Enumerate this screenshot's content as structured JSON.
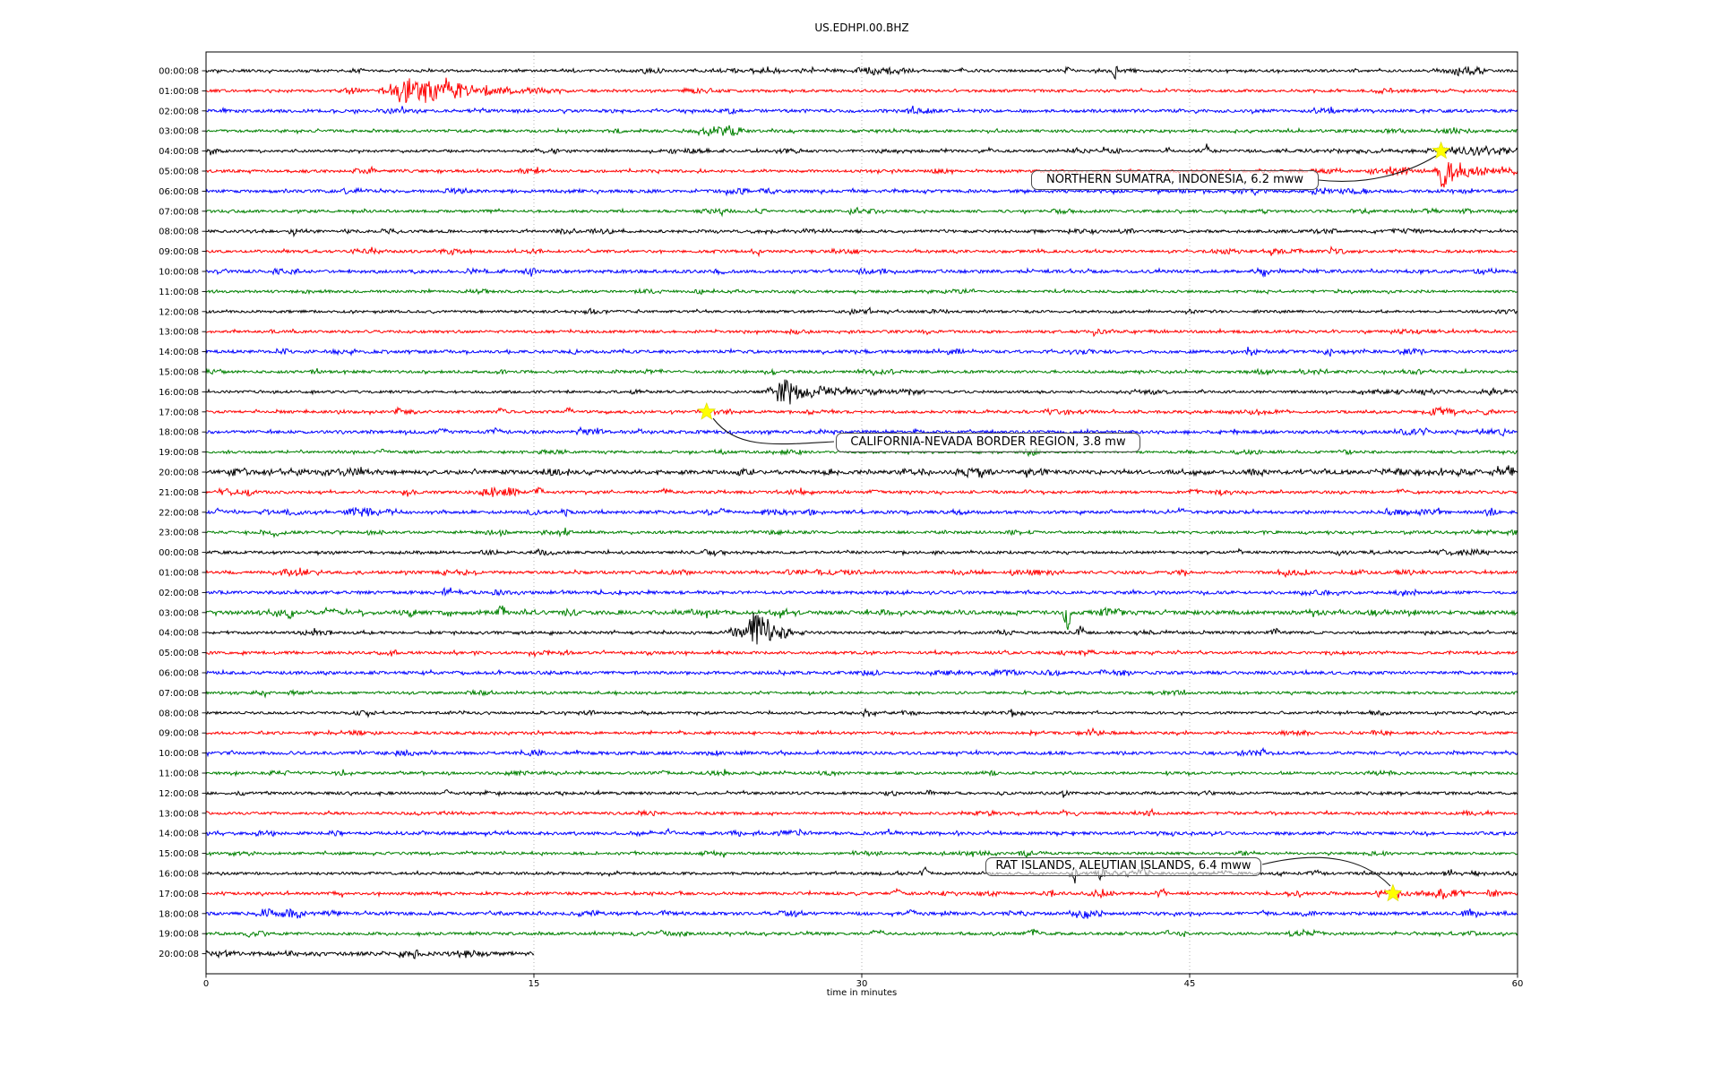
{
  "title": "US.EDHPI.00.BHZ",
  "chart_data": {
    "type": "line",
    "subtype": "helicorder-dayplot",
    "title": "US.EDHPI.00.BHZ",
    "xlabel": "time in minutes",
    "xlim": [
      0,
      60
    ],
    "xticks": [
      0,
      15,
      30,
      45,
      60
    ],
    "grid_minutes": [
      15,
      30,
      45
    ],
    "grid_style": "dotted",
    "trace_color_cycle": [
      "#000000",
      "#ff0000",
      "#0000ff",
      "#008000"
    ],
    "star_color": "#ffff00",
    "rows": [
      {
        "label": "00:00:08",
        "color": "#000000",
        "noise": 1.4,
        "bursts": [
          [
            25.5,
            0.5,
            3
          ],
          [
            30.8,
            1.2,
            4
          ],
          [
            34.6,
            0.1,
            3
          ],
          [
            39.4,
            0.12,
            6
          ],
          [
            41.6,
            0.07,
            -20
          ],
          [
            57.3,
            0.7,
            4
          ]
        ]
      },
      {
        "label": "01:00:08",
        "color": "#ff0000",
        "noise": 1.5,
        "bursts": [
          [
            6.6,
            0.3,
            4
          ],
          [
            9.0,
            0.5,
            12
          ],
          [
            10.2,
            0.8,
            14
          ],
          [
            11.5,
            0.6,
            8
          ],
          [
            12.9,
            0.8,
            5
          ],
          [
            14.5,
            1.0,
            3
          ]
        ]
      },
      {
        "label": "02:00:08",
        "color": "#0000ff",
        "noise": 1.7,
        "bursts": []
      },
      {
        "label": "03:00:08",
        "color": "#008000",
        "noise": 1.5,
        "bursts": [
          [
            23.3,
            0.5,
            6
          ],
          [
            24.1,
            0.3,
            5
          ]
        ]
      },
      {
        "label": "04:00:08",
        "color": "#000000",
        "noise": 1.4,
        "bursts": [
          [
            35.9,
            0.1,
            4
          ],
          [
            44.0,
            0.1,
            5
          ],
          [
            45.8,
            0.08,
            8
          ],
          [
            52,
            4,
            1.6
          ],
          [
            56.4,
            0.15,
            6
          ],
          [
            57.6,
            1.2,
            4
          ],
          [
            59.2,
            0.8,
            3
          ]
        ]
      },
      {
        "label": "05:00:08",
        "color": "#ff0000",
        "noise": 1.5,
        "bursts": [
          [
            54.6,
            0.8,
            4
          ],
          [
            56.6,
            0.1,
            -24
          ],
          [
            56.8,
            0.35,
            11
          ],
          [
            57.9,
            1.0,
            6
          ],
          [
            59.2,
            0.8,
            4
          ]
        ]
      },
      {
        "label": "06:00:08",
        "color": "#0000ff",
        "noise": 1.7,
        "bursts": []
      },
      {
        "label": "07:00:08",
        "color": "#008000",
        "noise": 1.5,
        "bursts": [
          [
            13.2,
            0.2,
            3
          ]
        ]
      },
      {
        "label": "08:00:08",
        "color": "#000000",
        "noise": 1.5,
        "bursts": [
          [
            27,
            3,
            1.2
          ]
        ]
      },
      {
        "label": "09:00:08",
        "color": "#ff0000",
        "noise": 1.5,
        "bursts": []
      },
      {
        "label": "10:00:08",
        "color": "#0000ff",
        "noise": 1.7,
        "bursts": []
      },
      {
        "label": "11:00:08",
        "color": "#008000",
        "noise": 1.4,
        "bursts": []
      },
      {
        "label": "12:00:08",
        "color": "#000000",
        "noise": 1.4,
        "bursts": []
      },
      {
        "label": "13:00:08",
        "color": "#ff0000",
        "noise": 1.5,
        "bursts": [
          [
            33,
            0.3,
            2.5
          ]
        ]
      },
      {
        "label": "14:00:08",
        "color": "#0000ff",
        "noise": 1.7,
        "bursts": []
      },
      {
        "label": "15:00:08",
        "color": "#008000",
        "noise": 1.5,
        "bursts": [
          [
            5,
            0.3,
            2
          ],
          [
            25.8,
            0.3,
            2.5
          ]
        ]
      },
      {
        "label": "16:00:08",
        "color": "#000000",
        "noise": 1.4,
        "bursts": [
          [
            25.9,
            0.2,
            5
          ],
          [
            26.4,
            0.35,
            13
          ],
          [
            27.3,
            0.8,
            7
          ],
          [
            28.6,
            1.2,
            4
          ],
          [
            30.6,
            1.0,
            3
          ],
          [
            43,
            1,
            2
          ],
          [
            54.8,
            1.5,
            2.6
          ],
          [
            59,
            0.5,
            3
          ]
        ]
      },
      {
        "label": "17:00:08",
        "color": "#ff0000",
        "noise": 1.5,
        "bursts": [
          [
            8.8,
            0.15,
            4
          ],
          [
            13.5,
            0.15,
            4
          ],
          [
            16.6,
            0.12,
            4
          ],
          [
            23.6,
            0.6,
            3
          ],
          [
            39,
            1,
            2.6
          ],
          [
            47.9,
            0.8,
            3
          ],
          [
            56.4,
            0.8,
            4
          ],
          [
            58.6,
            0.3,
            4
          ]
        ]
      },
      {
        "label": "18:00:08",
        "color": "#0000ff",
        "noise": 1.7,
        "bursts": [
          [
            10.8,
            0.15,
            5
          ],
          [
            13.3,
            0.2,
            4
          ],
          [
            19.8,
            0.1,
            3
          ],
          [
            32.5,
            0.15,
            3
          ],
          [
            47,
            0.1,
            4
          ],
          [
            55.8,
            0.15,
            4
          ]
        ]
      },
      {
        "label": "19:00:08",
        "color": "#008000",
        "noise": 1.4,
        "bursts": [
          [
            8,
            0.2,
            2.5
          ],
          [
            37.8,
            0.25,
            5
          ]
        ]
      },
      {
        "label": "20:00:08",
        "color": "#000000",
        "noise": 2.1,
        "bursts": [
          [
            4,
            1.5,
            2.6
          ],
          [
            6.6,
            1,
            3
          ],
          [
            28.6,
            0.3,
            3
          ],
          [
            35.5,
            0.5,
            5
          ],
          [
            45.5,
            0.3,
            3
          ],
          [
            54.6,
            1,
            2.6
          ],
          [
            56.6,
            1.5,
            3
          ],
          [
            59.5,
            0.5,
            4
          ]
        ]
      },
      {
        "label": "21:00:08",
        "color": "#ff0000",
        "noise": 1.5,
        "bursts": [
          [
            0.9,
            0.25,
            5
          ],
          [
            1.8,
            0.25,
            4
          ],
          [
            13,
            0.4,
            5
          ],
          [
            13.9,
            0.3,
            6
          ],
          [
            15.2,
            0.2,
            6
          ],
          [
            21,
            0.2,
            3
          ],
          [
            30.6,
            0.2,
            3
          ],
          [
            37.6,
            0.2,
            3
          ],
          [
            45.2,
            0.2,
            4
          ],
          [
            54.7,
            0.2,
            4
          ]
        ]
      },
      {
        "label": "22:00:08",
        "color": "#0000ff",
        "noise": 1.7,
        "bursts": [
          [
            0.6,
            0.2,
            3
          ],
          [
            7.0,
            0.4,
            5
          ],
          [
            7.5,
            0.12,
            8
          ],
          [
            8.2,
            0.4,
            4
          ],
          [
            23.6,
            0.2,
            4
          ],
          [
            44.6,
            0.15,
            4
          ],
          [
            58.8,
            0.3,
            4
          ]
        ]
      },
      {
        "label": "23:00:08",
        "color": "#008000",
        "noise": 1.5,
        "bursts": [
          [
            3.2,
            0.15,
            -5
          ],
          [
            16.5,
            0.15,
            5
          ],
          [
            26,
            0.3,
            2.5
          ]
        ]
      },
      {
        "label": "00:00:08",
        "color": "#000000",
        "noise": 1.5,
        "bursts": [
          [
            15.5,
            0.4,
            3
          ],
          [
            47.3,
            0.2,
            3
          ],
          [
            57.6,
            1.5,
            3
          ]
        ]
      },
      {
        "label": "01:00:08",
        "color": "#ff0000",
        "noise": 1.6,
        "bursts": [
          [
            4.2,
            0.8,
            3.5
          ],
          [
            37,
            0.3,
            2.5
          ]
        ]
      },
      {
        "label": "02:00:08",
        "color": "#0000ff",
        "noise": 1.7,
        "bursts": []
      },
      {
        "label": "03:00:08",
        "color": "#008000",
        "noise": 2.1,
        "bursts": [
          [
            3.3,
            0.3,
            5
          ],
          [
            3.9,
            0.1,
            -9
          ],
          [
            5.7,
            0.15,
            5
          ],
          [
            7.3,
            0.3,
            3
          ],
          [
            9.4,
            0.4,
            4
          ],
          [
            11.2,
            0.3,
            4
          ],
          [
            13.5,
            0.1,
            10
          ],
          [
            26.3,
            0.3,
            5
          ],
          [
            31,
            0.3,
            3
          ],
          [
            39.4,
            0.1,
            -26
          ],
          [
            41.4,
            0.4,
            6
          ],
          [
            50.7,
            0.3,
            4
          ],
          [
            55,
            0.3,
            3
          ]
        ]
      },
      {
        "label": "04:00:08",
        "color": "#000000",
        "noise": 1.5,
        "bursts": [
          [
            24.4,
            0.4,
            5
          ],
          [
            25.1,
            0.22,
            24
          ],
          [
            25.5,
            0.3,
            -19
          ],
          [
            26.3,
            0.5,
            6
          ],
          [
            40.0,
            0.1,
            9
          ],
          [
            48.9,
            0.15,
            4
          ]
        ]
      },
      {
        "label": "05:00:08",
        "color": "#ff0000",
        "noise": 1.5,
        "bursts": []
      },
      {
        "label": "06:00:08",
        "color": "#0000ff",
        "noise": 1.7,
        "bursts": []
      },
      {
        "label": "07:00:08",
        "color": "#008000",
        "noise": 1.4,
        "bursts": []
      },
      {
        "label": "08:00:08",
        "color": "#000000",
        "noise": 1.4,
        "bursts": []
      },
      {
        "label": "09:00:08",
        "color": "#ff0000",
        "noise": 1.5,
        "bursts": []
      },
      {
        "label": "10:00:08",
        "color": "#0000ff",
        "noise": 1.7,
        "bursts": [
          [
            17,
            0.2,
            2.5
          ]
        ]
      },
      {
        "label": "11:00:08",
        "color": "#008000",
        "noise": 1.4,
        "bursts": [
          [
            21,
            0.2,
            2.5
          ]
        ]
      },
      {
        "label": "12:00:08",
        "color": "#000000",
        "noise": 1.5,
        "bursts": [
          [
            11,
            0.15,
            3
          ],
          [
            33,
            0.2,
            2.6
          ]
        ]
      },
      {
        "label": "13:00:08",
        "color": "#ff0000",
        "noise": 1.5,
        "bursts": []
      },
      {
        "label": "14:00:08",
        "color": "#0000ff",
        "noise": 1.7,
        "bursts": [
          [
            21.2,
            0.15,
            4
          ]
        ]
      },
      {
        "label": "15:00:08",
        "color": "#008000",
        "noise": 1.4,
        "bursts": []
      },
      {
        "label": "16:00:08",
        "color": "#000000",
        "noise": 1.5,
        "bursts": [
          [
            32.9,
            0.15,
            6
          ],
          [
            39.7,
            0.1,
            -17
          ],
          [
            40.9,
            0.25,
            7
          ],
          [
            42.9,
            0.2,
            6
          ],
          [
            46.6,
            0.2,
            3
          ],
          [
            50.7,
            0.2,
            4
          ],
          [
            58,
            0.3,
            2.6
          ]
        ]
      },
      {
        "label": "17:00:08",
        "color": "#ff0000",
        "noise": 1.5,
        "bursts": [
          [
            31.6,
            0.15,
            5
          ],
          [
            35.9,
            0.4,
            4
          ],
          [
            38.7,
            0.3,
            4
          ],
          [
            40.9,
            0.5,
            4
          ],
          [
            43.7,
            0.2,
            4
          ],
          [
            50,
            0.3,
            3
          ],
          [
            54.3,
            0.5,
            4
          ],
          [
            56.6,
            0.8,
            4
          ],
          [
            58.9,
            0.3,
            4
          ]
        ]
      },
      {
        "label": "18:00:08",
        "color": "#0000ff",
        "noise": 1.7,
        "bursts": [
          [
            2.9,
            0.4,
            6
          ],
          [
            3.9,
            0.6,
            5
          ],
          [
            5.6,
            0.5,
            3
          ],
          [
            21,
            0.2,
            2.5
          ],
          [
            32.3,
            0.15,
            4
          ],
          [
            40.2,
            0.1,
            -9
          ],
          [
            48.4,
            0.15,
            3
          ],
          [
            57.8,
            0.3,
            4
          ]
        ]
      },
      {
        "label": "19:00:08",
        "color": "#008000",
        "noise": 1.5,
        "bursts": [
          [
            1.9,
            0.1,
            -4
          ],
          [
            19.6,
            0.1,
            -5
          ],
          [
            20.8,
            0.12,
            4
          ],
          [
            30.7,
            0.2,
            4
          ],
          [
            37.8,
            0.2,
            5
          ],
          [
            43.9,
            0.2,
            3
          ],
          [
            50.7,
            0.2,
            4
          ]
        ]
      },
      {
        "label": "20:00:08",
        "color": "#000000",
        "noise": 2.1,
        "t_end": 15,
        "bursts": [
          [
            0.5,
            0.5,
            3
          ],
          [
            4,
            0.5,
            2.6
          ],
          [
            9.3,
            0.6,
            4
          ],
          [
            12,
            0.5,
            3
          ]
        ]
      }
    ],
    "annotations": [
      {
        "label": "NORTHERN SUMATRA, INDONESIA, 6.2 mww",
        "row": 4,
        "minute": 56.5
      },
      {
        "label": "CALIFORNIA-NEVADA BORDER REGION, 3.8 mw",
        "row": 17,
        "minute": 22.9
      },
      {
        "label": "RAT ISLANDS, ALEUTIAN ISLANDS, 6.4 mww",
        "row": 41,
        "minute": 54.3
      }
    ]
  }
}
